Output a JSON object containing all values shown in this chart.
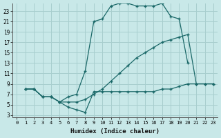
{
  "xlabel": "Humidex (Indice chaleur)",
  "bg_color": "#c8e8e8",
  "grid_color": "#a8cece",
  "line_color": "#1a6868",
  "xlim": [
    -0.5,
    23.5
  ],
  "ylim": [
    2.5,
    24.5
  ],
  "xticks": [
    0,
    1,
    2,
    3,
    4,
    5,
    6,
    7,
    8,
    9,
    10,
    11,
    12,
    13,
    14,
    15,
    16,
    17,
    18,
    19,
    20,
    21,
    22,
    23
  ],
  "yticks": [
    3,
    5,
    7,
    9,
    11,
    13,
    15,
    17,
    19,
    21,
    23
  ],
  "line_top": {
    "x": [
      1,
      2,
      3,
      4,
      5,
      6,
      7,
      8,
      9,
      10,
      11,
      12,
      13,
      14,
      15,
      16,
      17,
      18,
      19,
      20
    ],
    "y": [
      8,
      8,
      6.5,
      6.5,
      5.5,
      6.5,
      7,
      11.5,
      21,
      21.5,
      24,
      24.5,
      24.5,
      24,
      24,
      24,
      24.5,
      22,
      21.5,
      13
    ]
  },
  "line_mid": {
    "x": [
      1,
      2,
      3,
      4,
      5,
      6,
      7,
      8,
      9,
      10,
      11,
      12,
      13,
      14,
      15,
      16,
      17,
      18,
      19,
      20,
      21,
      22,
      23
    ],
    "y": [
      8,
      8,
      6.5,
      6.5,
      5.5,
      5.5,
      5.5,
      6,
      7,
      8,
      9.5,
      11,
      12.5,
      14,
      15,
      16,
      17,
      17.5,
      18,
      18.5,
      9,
      9,
      9
    ]
  },
  "line_bot": {
    "x": [
      1,
      2,
      3,
      4,
      5,
      6,
      7,
      8,
      9,
      10,
      11,
      12,
      13,
      14,
      15,
      16,
      17,
      18,
      19,
      20,
      21,
      22,
      23
    ],
    "y": [
      8,
      8,
      6.5,
      6.5,
      5.5,
      4.5,
      4,
      3.5,
      7.5,
      7.5,
      7.5,
      7.5,
      7.5,
      7.5,
      7.5,
      7.5,
      8,
      8,
      8.5,
      9,
      9,
      9,
      9
    ]
  }
}
